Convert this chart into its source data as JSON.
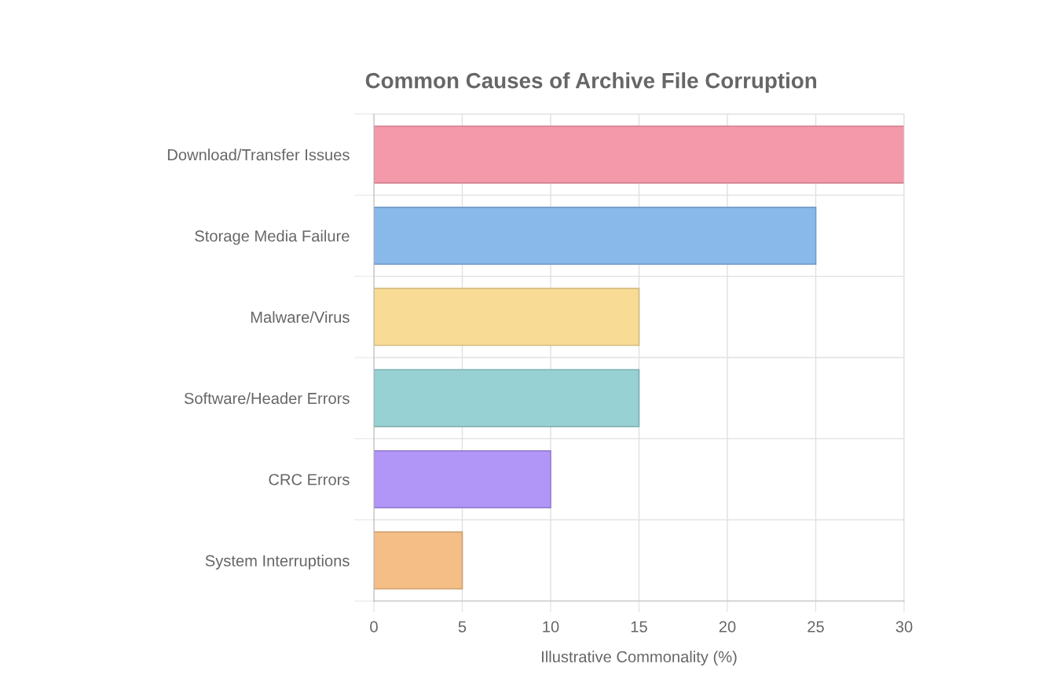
{
  "chart_data": {
    "type": "bar",
    "orientation": "horizontal",
    "title": "Common Causes of Archive File Corruption",
    "xlabel": "Illustrative Commonality (%)",
    "categories": [
      "Download/Transfer Issues",
      "Storage Media Failure",
      "Malware/Virus",
      "Software/Header Errors",
      "CRC Errors",
      "System Interruptions"
    ],
    "values": [
      30,
      25,
      15,
      15,
      10,
      5
    ],
    "colors": [
      "#f399a9",
      "#88b9ea",
      "#f8dc95",
      "#98d1d3",
      "#b195f7",
      "#f4be86"
    ],
    "xlim": [
      0,
      30
    ],
    "xticks": [
      0,
      5,
      10,
      15,
      20,
      25,
      30
    ],
    "grid": true
  }
}
